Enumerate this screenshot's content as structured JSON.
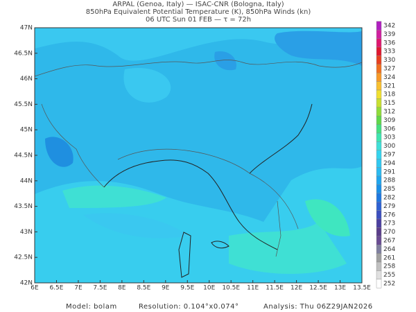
{
  "header": {
    "lines": [
      "ARPAL (Genoa, Italy)  —  ISAC-CNR (Bologna, Italy)",
      "850hPa Equivalent Potential Temperature (K), 850hPa Winds (kn)",
      "06 UTC Sun 01 FEB  —  τ = 72h"
    ]
  },
  "map": {
    "latitude_labels": [
      "47N",
      "46.5N",
      "46N",
      "45.5N",
      "45N",
      "44.5N",
      "44N",
      "43.5N",
      "43N",
      "42.5N",
      "42N"
    ],
    "longitude_labels": [
      "6E",
      "6.5E",
      "7E",
      "7.5E",
      "8E",
      "8.5E",
      "9E",
      "9.5E",
      "10E",
      "10.5E",
      "11E",
      "11.5E",
      "12E",
      "12.5E",
      "13E",
      "13.5E"
    ]
  },
  "colorbar": {
    "ticks": [
      342,
      339,
      336,
      333,
      330,
      327,
      324,
      321,
      318,
      315,
      312,
      309,
      306,
      303,
      300,
      297,
      294,
      291,
      288,
      285,
      282,
      279,
      276,
      273,
      270,
      267,
      264,
      261,
      258,
      255,
      252
    ],
    "colors": [
      "#b020c0",
      "#d020a0",
      "#e01870",
      "#e01830",
      "#e84020",
      "#f07020",
      "#f89a28",
      "#f8c030",
      "#f0e030",
      "#c8e030",
      "#90dc3a",
      "#60d84a",
      "#45e080",
      "#3fe6b0",
      "#3fe0d8",
      "#35d4ee",
      "#30c8f0",
      "#2bbbf0",
      "#1fa6ee",
      "#1a90e8",
      "#1f78e0",
      "#2e62d4",
      "#3c4fbf",
      "#4b3fa0",
      "#5a3d8a",
      "#6a4c93",
      "#7f7f9f",
      "#a0a0a0",
      "#c0c0c0",
      "#e0e0e0",
      "#ffffff"
    ]
  },
  "footer": {
    "model": "Model: bolam",
    "resolution": "Resolution: 0.104°x0.074°",
    "analysis": "Analysis: Thu 06Z29JAN2026"
  }
}
